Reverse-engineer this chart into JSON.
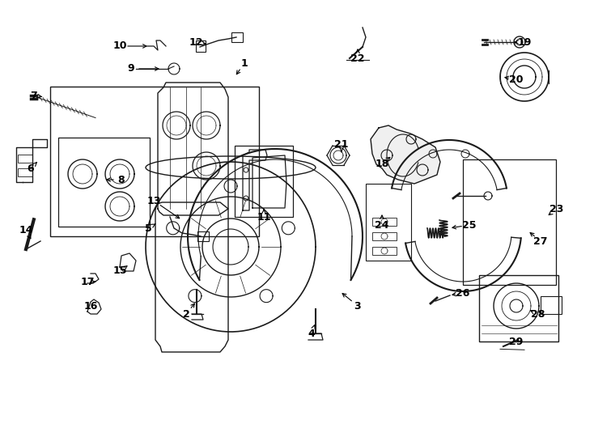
{
  "bg": "#ffffff",
  "lc": "#1a1a1a",
  "fig_w": 7.34,
  "fig_h": 5.4,
  "dpi": 100,
  "xlim": [
    0,
    734
  ],
  "ylim": [
    0,
    540
  ]
}
